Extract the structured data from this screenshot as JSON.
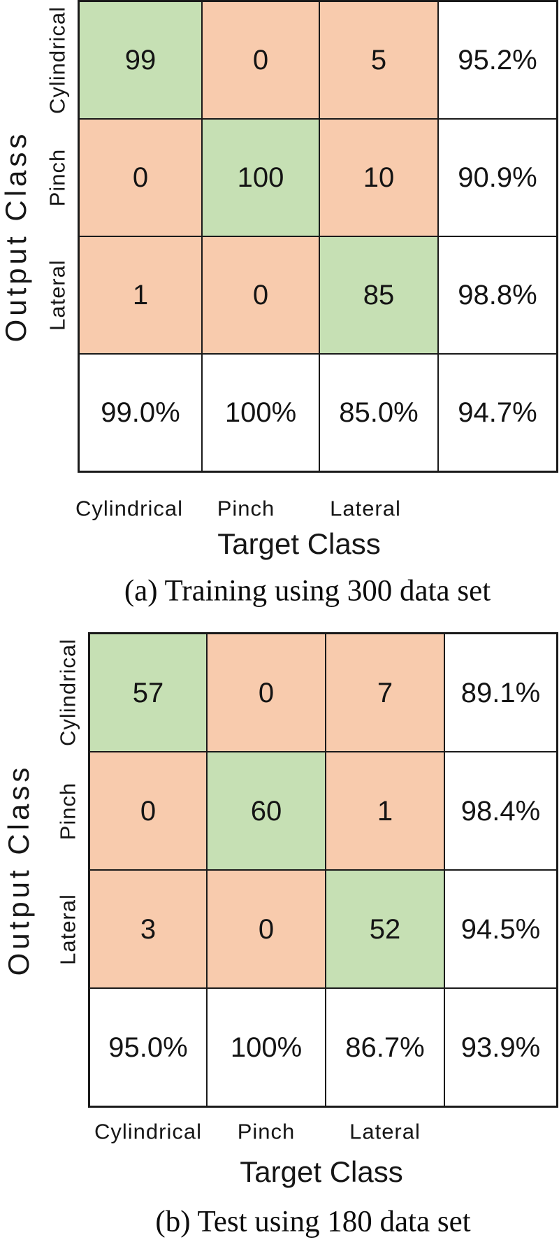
{
  "figures": [
    {
      "panel": "a",
      "caption": "(a) Training using 300 data set",
      "x_axis_title": "Target Class",
      "y_axis_title": "Output Class",
      "row_labels": [
        "Cylindrical",
        "Pinch",
        "Lateral"
      ],
      "col_labels": [
        "Cylindrical",
        "Pinch",
        "Lateral"
      ],
      "grid": [
        [
          "99",
          "0",
          "5",
          "95.2%"
        ],
        [
          "0",
          "100",
          "10",
          "90.9%"
        ],
        [
          "1",
          "0",
          "85",
          "98.8%"
        ],
        [
          "99.0%",
          "100%",
          "85.0%",
          "94.7%"
        ]
      ]
    },
    {
      "panel": "b",
      "caption": "(b) Test using 180 data set",
      "x_axis_title": "Target Class",
      "y_axis_title": "Output Class",
      "row_labels": [
        "Cylindrical",
        "Pinch",
        "Lateral"
      ],
      "col_labels": [
        "Cylindrical",
        "Pinch",
        "Lateral"
      ],
      "grid": [
        [
          "57",
          "0",
          "7",
          "89.1%"
        ],
        [
          "0",
          "60",
          "1",
          "98.4%"
        ],
        [
          "3",
          "0",
          "52",
          "94.5%"
        ],
        [
          "95.0%",
          "100%",
          "86.7%",
          "93.9%"
        ]
      ]
    }
  ],
  "colors": {
    "correct_cell": "#c6e0b4",
    "error_cell": "#f8cbad",
    "summary_cell": "#ffffff",
    "grid_line": "#1a1a1a"
  },
  "chart_data": [
    {
      "type": "heatmap",
      "title": "(a) Training using 300 data set",
      "xlabel": "Target Class",
      "ylabel": "Output Class",
      "x_categories": [
        "Cylindrical",
        "Pinch",
        "Lateral"
      ],
      "y_categories": [
        "Cylindrical",
        "Pinch",
        "Lateral"
      ],
      "values": [
        [
          99,
          0,
          5
        ],
        [
          0,
          100,
          10
        ],
        [
          1,
          0,
          85
        ]
      ],
      "row_summary_pct": [
        95.2,
        90.9,
        98.8
      ],
      "col_summary_pct": [
        99.0,
        100,
        85.0
      ],
      "overall_accuracy_pct": 94.7,
      "legend_position": "none",
      "grid": true
    },
    {
      "type": "heatmap",
      "title": "(b) Test using 180 data set",
      "xlabel": "Target Class",
      "ylabel": "Output Class",
      "x_categories": [
        "Cylindrical",
        "Pinch",
        "Lateral"
      ],
      "y_categories": [
        "Cylindrical",
        "Pinch",
        "Lateral"
      ],
      "values": [
        [
          57,
          0,
          7
        ],
        [
          0,
          60,
          1
        ],
        [
          3,
          0,
          52
        ]
      ],
      "row_summary_pct": [
        89.1,
        98.4,
        94.5
      ],
      "col_summary_pct": [
        95.0,
        100,
        86.7
      ],
      "overall_accuracy_pct": 93.9,
      "legend_position": "none",
      "grid": true
    }
  ]
}
